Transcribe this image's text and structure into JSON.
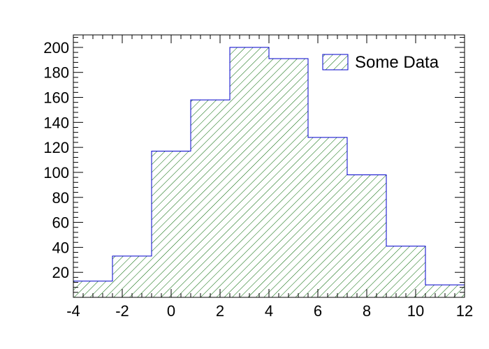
{
  "chart_data": {
    "type": "bar",
    "title": "",
    "xlabel": "",
    "ylabel": "",
    "xlim": [
      -4,
      12
    ],
    "ylim": [
      0,
      210
    ],
    "bin_edges": [
      -4,
      -2.4,
      -0.8,
      0.8,
      2.4,
      4.0,
      5.6,
      7.2,
      8.8,
      10.4,
      12
    ],
    "values": [
      13,
      33,
      117,
      158,
      200,
      191,
      128,
      98,
      41,
      10
    ],
    "x_ticks": [
      -4,
      -2,
      0,
      2,
      4,
      6,
      8,
      10,
      12
    ],
    "x_tick_labels": [
      "-4",
      "-2",
      "0",
      "2",
      "4",
      "6",
      "8",
      "10",
      "12"
    ],
    "y_ticks": [
      20,
      40,
      60,
      80,
      100,
      120,
      140,
      160,
      180,
      200
    ],
    "y_tick_labels": [
      "20",
      "40",
      "60",
      "80",
      "100",
      "120",
      "140",
      "160",
      "180",
      "200"
    ],
    "series": [
      {
        "name": "Some Data",
        "values": [
          13,
          33,
          117,
          158,
          200,
          191,
          128,
          98,
          41,
          10
        ]
      }
    ],
    "legend": {
      "position": "top-right",
      "label": "Some Data"
    },
    "grid": false,
    "colors": {
      "outline": "#0000cc",
      "hatch": "#006600",
      "axis": "#000000"
    }
  }
}
